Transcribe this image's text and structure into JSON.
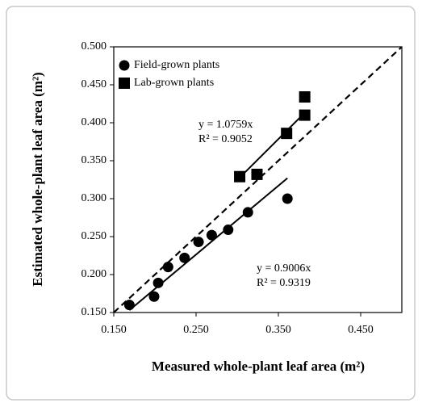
{
  "chart_data": {
    "type": "scatter",
    "x_label": "Measured whole-plant leaf area (m²)",
    "y_label": "Estimated whole-plant leaf area (m²)",
    "series": [
      {
        "name": "Field-grown plants",
        "marker": "circle",
        "color": "#000000",
        "x": [
          0.169,
          0.199,
          0.204,
          0.216,
          0.236,
          0.253,
          0.269,
          0.289,
          0.313,
          0.361
        ],
        "values": [
          0.16,
          0.171,
          0.189,
          0.21,
          0.222,
          0.243,
          0.252,
          0.259,
          0.282,
          0.3
        ],
        "annotation": [
          "y = 0.9006x",
          "R² = 0.9319"
        ]
      },
      {
        "name": "Lab-grown plants",
        "marker": "square",
        "color": "#000000",
        "x": [
          0.303,
          0.324,
          0.36,
          0.382,
          0.382
        ],
        "values": [
          0.329,
          0.332,
          0.386,
          0.434,
          0.41
        ],
        "annotation": [
          "y = 1.0759x",
          "R² = 0.9052"
        ]
      }
    ],
    "trendline": true,
    "identity_line": true,
    "xlim": [
      0.15,
      0.5
    ],
    "xticks": [
      {
        "value": 0.15,
        "label": "0.150"
      },
      {
        "value": 0.25,
        "label": "0.250"
      },
      {
        "value": 0.35,
        "label": "0.350"
      },
      {
        "value": 0.45,
        "label": "0.450"
      }
    ],
    "ylim": [
      0.15,
      0.5
    ],
    "yticks": [
      {
        "value": 0.15,
        "label": "0.150"
      },
      {
        "value": 0.2,
        "label": "0.200"
      },
      {
        "value": 0.25,
        "label": "0.250"
      },
      {
        "value": 0.3,
        "label": "0.300"
      },
      {
        "value": 0.35,
        "label": "0.350"
      },
      {
        "value": 0.4,
        "label": "0.400"
      },
      {
        "value": 0.45,
        "label": "0.450"
      },
      {
        "value": 0.5,
        "label": "0.500"
      }
    ],
    "legend": "top-left"
  }
}
